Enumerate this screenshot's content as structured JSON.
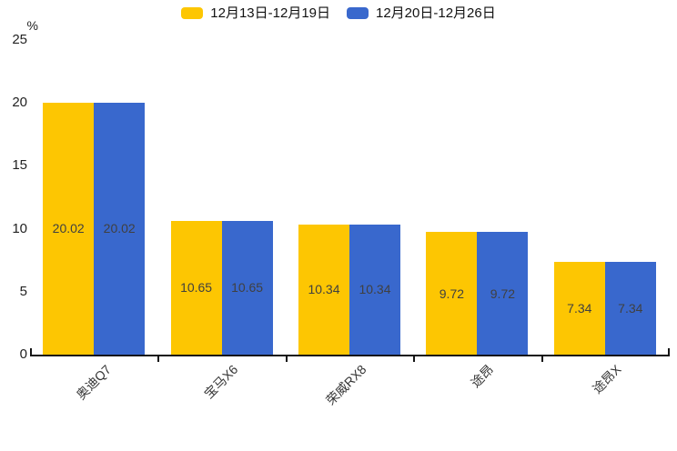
{
  "chart_data": {
    "type": "bar",
    "title": "",
    "ylabel": "%",
    "xlabel": "",
    "ylim": [
      0,
      25
    ],
    "yticks": [
      0,
      5,
      10,
      15,
      20,
      25
    ],
    "grid": false,
    "legend_position": "top-center",
    "label_position": "inside-middle",
    "categories": [
      "奥迪Q7",
      "宝马X6",
      "荣威RX8",
      "途昂",
      "途昂X"
    ],
    "series": [
      {
        "name": "12月13日-12月19日",
        "color": "#FDC602",
        "values": [
          20.02,
          10.65,
          10.34,
          9.72,
          7.34
        ]
      },
      {
        "name": "12月20日-12月26日",
        "color": "#3968CD",
        "values": [
          20.02,
          10.65,
          10.34,
          9.72,
          7.34
        ]
      }
    ]
  }
}
